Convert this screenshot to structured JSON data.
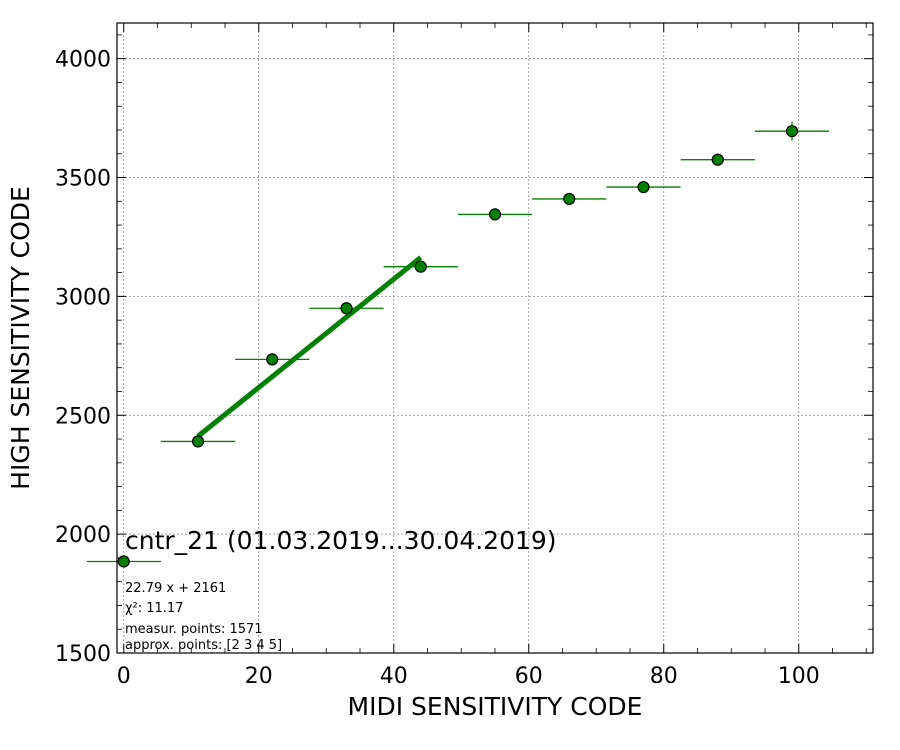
{
  "chart_data": {
    "type": "scatter",
    "title": "cntr_21 (01.03.2019...30.04.2019)",
    "xlabel": "MIDI SENSITIVITY CODE",
    "ylabel": "HIGH SENSITIVITY CODE",
    "xlim": [
      -1,
      111
    ],
    "ylim": [
      1500,
      4150
    ],
    "x_ticks": [
      0,
      20,
      40,
      60,
      80,
      100
    ],
    "y_ticks": [
      1500,
      2000,
      2500,
      3000,
      3500,
      4000
    ],
    "grid": true,
    "colors": {
      "marker": "#008000",
      "fit": "#008000",
      "marker_edge": "#000000",
      "grid": "#888888"
    },
    "points": [
      {
        "x": 0,
        "y": 1885,
        "xerr": 5.5,
        "yerr": 0
      },
      {
        "x": 11,
        "y": 2390,
        "xerr": 5.5,
        "yerr": 10
      },
      {
        "x": 22,
        "y": 2735,
        "xerr": 5.5,
        "yerr": 12
      },
      {
        "x": 33,
        "y": 2950,
        "xerr": 5.5,
        "yerr": 15
      },
      {
        "x": 44,
        "y": 3125,
        "xerr": 5.5,
        "yerr": 15
      },
      {
        "x": 55,
        "y": 3345,
        "xerr": 5.5,
        "yerr": 20
      },
      {
        "x": 66,
        "y": 3410,
        "xerr": 5.5,
        "yerr": 20
      },
      {
        "x": 77,
        "y": 3460,
        "xerr": 5.5,
        "yerr": 20
      },
      {
        "x": 88,
        "y": 3575,
        "xerr": 5.5,
        "yerr": 20
      },
      {
        "x": 99,
        "y": 3695,
        "xerr": 5.5,
        "yerr": 40
      }
    ],
    "fit": {
      "slope": 22.79,
      "intercept": 2161,
      "x_range": [
        11,
        44
      ]
    },
    "annotations": [
      "22.79 x + 2161",
      "χ²: 11.17",
      "measur. points: 1571",
      "approx. points: [2 3 4 5]"
    ]
  }
}
